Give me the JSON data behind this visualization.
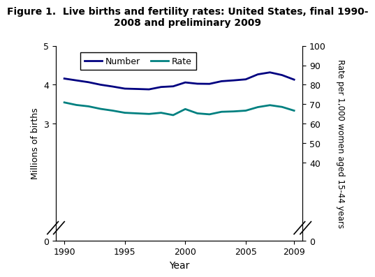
{
  "title": "Figure 1.  Live births and fertility rates: United States, final 1990-\n2008 and preliminary 2009",
  "xlabel": "Year",
  "ylabel_left": "Millions of births",
  "ylabel_right": "Rate per 1,000 women aged 15-44 years",
  "years": [
    1990,
    1991,
    1992,
    1993,
    1994,
    1995,
    1996,
    1997,
    1998,
    1999,
    2000,
    2001,
    2002,
    2003,
    2004,
    2005,
    2006,
    2007,
    2008,
    2009
  ],
  "number_millions": [
    4.158,
    4.111,
    4.065,
    4.0,
    3.953,
    3.9,
    3.891,
    3.881,
    3.942,
    3.959,
    4.059,
    4.026,
    4.022,
    4.09,
    4.112,
    4.138,
    4.266,
    4.317,
    4.248,
    4.131
  ],
  "rate": [
    70.9,
    69.6,
    68.9,
    67.6,
    66.7,
    65.6,
    65.3,
    65.0,
    65.6,
    64.4,
    67.5,
    65.3,
    64.8,
    66.1,
    66.3,
    66.7,
    68.5,
    69.5,
    68.6,
    66.7
  ],
  "number_color": "#000080",
  "rate_color": "#008080",
  "ylim_left": [
    0,
    5
  ],
  "ylim_right": [
    0,
    100
  ],
  "yticks_left": [
    0,
    3,
    4,
    5
  ],
  "yticks_right": [
    0,
    40,
    50,
    60,
    70,
    80,
    90,
    100
  ],
  "xticks": [
    1990,
    1995,
    2000,
    2005,
    2009
  ],
  "legend_number": "Number",
  "legend_rate": "Rate",
  "linewidth": 2.0,
  "background_color": "#ffffff",
  "title_fontsize": 10,
  "axis_fontsize": 9,
  "tick_fontsize": 9
}
